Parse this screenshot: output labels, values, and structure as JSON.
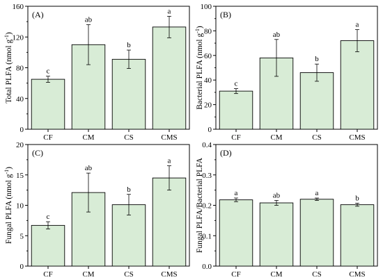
{
  "chart_data": [
    {
      "type": "bar",
      "panel_label": "(A)",
      "ylabel_main": "Total PLFA (nmol g",
      "ylabel_sup": "-1",
      "ylabel_close": ")",
      "categories": [
        "CF",
        "CM",
        "CS",
        "CMS"
      ],
      "values": [
        65,
        110,
        91,
        133
      ],
      "errors": [
        4,
        26,
        12,
        14
      ],
      "letters": [
        "c",
        "ab",
        "b",
        "a"
      ],
      "ylim": [
        0,
        160
      ],
      "yticks": [
        0,
        40,
        80,
        120,
        160
      ],
      "ytick_labels": [
        "0",
        "40",
        "80",
        "120",
        "160"
      ]
    },
    {
      "type": "bar",
      "panel_label": "(B)",
      "ylabel_main": "Bacterial PLFA (nmol g",
      "ylabel_sup": "-1",
      "ylabel_close": ")",
      "categories": [
        "CF",
        "CM",
        "CS",
        "CMS"
      ],
      "values": [
        31,
        58,
        46,
        72
      ],
      "errors": [
        2,
        15,
        7,
        9
      ],
      "letters": [
        "c",
        "ab",
        "b",
        "a"
      ],
      "ylim": [
        0,
        100
      ],
      "yticks": [
        0,
        20,
        40,
        60,
        80,
        100
      ],
      "ytick_labels": [
        "0",
        "20",
        "40",
        "60",
        "80",
        "100"
      ]
    },
    {
      "type": "bar",
      "panel_label": "(C)",
      "ylabel_main": "Fungal PLFA (nmol g",
      "ylabel_sup": "-1",
      "ylabel_close": ")",
      "categories": [
        "CF",
        "CM",
        "CS",
        "CMS"
      ],
      "values": [
        6.7,
        12.1,
        10.1,
        14.5
      ],
      "errors": [
        0.6,
        3.2,
        1.7,
        2.0
      ],
      "letters": [
        "c",
        "ab",
        "b",
        "a"
      ],
      "ylim": [
        0,
        20
      ],
      "yticks": [
        0,
        5,
        10,
        15,
        20
      ],
      "ytick_labels": [
        "0",
        "5",
        "10",
        "15",
        "20"
      ]
    },
    {
      "type": "bar",
      "panel_label": "(D)",
      "ylabel_main": "Fungal PLFA/Bacterial PLFA",
      "ylabel_sup": "",
      "ylabel_close": "",
      "categories": [
        "CF",
        "CM",
        "CS",
        "CMS"
      ],
      "values": [
        0.218,
        0.208,
        0.22,
        0.202
      ],
      "errors": [
        0.006,
        0.008,
        0.004,
        0.005
      ],
      "letters": [
        "a",
        "ab",
        "a",
        "b"
      ],
      "ylim": [
        0,
        0.4
      ],
      "yticks": [
        0.0,
        0.1,
        0.2,
        0.3,
        0.4
      ],
      "ytick_labels": [
        "0.0",
        "0.1",
        "0.2",
        "0.3",
        "0.4"
      ]
    }
  ]
}
